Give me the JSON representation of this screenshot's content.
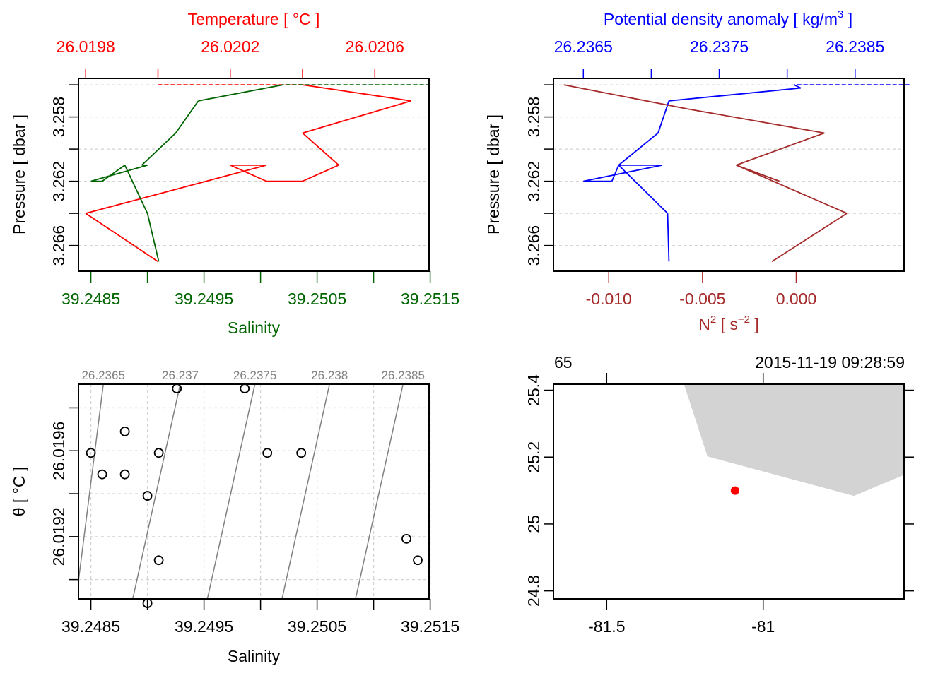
{
  "chart_data": [
    {
      "id": "profile_TS",
      "type": "line",
      "title": "",
      "ylabel": "Pressure [ dbar ]",
      "ylim": [
        3.2676,
        3.2556
      ],
      "yticks": [
        "3.258",
        "3.262",
        "3.266"
      ],
      "ytick_values": [
        3.256,
        3.258,
        3.26,
        3.262,
        3.264,
        3.266
      ],
      "top_axis": {
        "label": "Temperature [ °C ]",
        "color": "#ff0000",
        "tick_labels": [
          "26.0198",
          "26.0202",
          "26.0206"
        ],
        "tick_values": [
          26.0198,
          26.02,
          26.0202,
          26.0204,
          26.0206
        ],
        "range": [
          26.01978,
          26.02075
        ]
      },
      "bottom_axis": {
        "label": "Salinity",
        "color": "#006400",
        "tick_labels": [
          "39.2485",
          "39.2495",
          "39.2505",
          "39.2515"
        ],
        "tick_values": [
          39.2485,
          39.249,
          39.2495,
          39.25,
          39.2505,
          39.251,
          39.2515
        ],
        "range": [
          39.24839,
          39.25149
        ]
      },
      "series": [
        {
          "name": "Temperature",
          "color": "#ff0000",
          "points": [
            {
              "x": 26.02,
              "y": 3.256,
              "dashed": true
            },
            {
              "x": 26.0204,
              "y": 3.256
            },
            {
              "x": 26.0207,
              "y": 3.257
            },
            {
              "x": 26.0204,
              "y": 3.259
            },
            {
              "x": 26.0205,
              "y": 3.261
            },
            {
              "x": 26.0204,
              "y": 3.262
            },
            {
              "x": 26.0203,
              "y": 3.262
            },
            {
              "x": 26.0202,
              "y": 3.261
            },
            {
              "x": 26.0203,
              "y": 3.261
            },
            {
              "x": 26.0198,
              "y": 3.264
            },
            {
              "x": 26.02,
              "y": 3.267
            }
          ]
        },
        {
          "name": "Salinity",
          "color": "#006400",
          "points": [
            {
              "x": 39.2515,
              "y": 3.256,
              "dashed": true
            },
            {
              "x": 39.2502,
              "y": 3.256
            },
            {
              "x": 39.24945,
              "y": 3.257
            },
            {
              "x": 39.24925,
              "y": 3.259
            },
            {
              "x": 39.24895,
              "y": 3.261
            },
            {
              "x": 39.249,
              "y": 3.261
            },
            {
              "x": 39.2485,
              "y": 3.262
            },
            {
              "x": 39.2486,
              "y": 3.262
            },
            {
              "x": 39.2488,
              "y": 3.261
            },
            {
              "x": 39.249,
              "y": 3.264
            },
            {
              "x": 39.2491,
              "y": 3.267
            }
          ]
        }
      ]
    },
    {
      "id": "profile_density_N2",
      "type": "line",
      "ylabel": "Pressure [ dbar ]",
      "ylim": [
        3.2676,
        3.2556
      ],
      "yticks": [
        "3.258",
        "3.262",
        "3.266"
      ],
      "ytick_values": [
        3.256,
        3.258,
        3.26,
        3.262,
        3.264,
        3.266
      ],
      "top_axis": {
        "label": "Potential density anomaly [ kg/m³ ]",
        "label_main": "Potential density anomaly [ kg/m",
        "label_sup": "3",
        "label_end": " ]",
        "color": "#0000ff",
        "tick_labels": [
          "26.2365",
          "26.2375",
          "26.2385"
        ],
        "tick_values": [
          26.2365,
          26.237,
          26.2375,
          26.238,
          26.2385
        ],
        "range": [
          26.23628,
          26.23886
        ]
      },
      "bottom_axis": {
        "label_main": "N",
        "label_sup1": "2",
        "label_mid": " [ s",
        "label_sup2": "−2",
        "label_end": " ]",
        "label": "N² [ s⁻² ]",
        "color": "#a52a2a",
        "tick_labels": [
          "-0.010",
          "-0.005",
          "0.000"
        ],
        "tick_values": [
          -0.01,
          -0.005,
          0.0
        ],
        "range": [
          -0.01295,
          0.00575
        ]
      },
      "series": [
        {
          "name": "Potential density anomaly",
          "color": "#0000ff",
          "points": [
            {
              "x": 26.2389,
              "y": 3.256,
              "dashed": true
            },
            {
              "x": 26.23805,
              "y": 3.256
            },
            {
              "x": 26.2381,
              "y": 3.2562
            },
            {
              "x": 26.23713,
              "y": 3.257
            },
            {
              "x": 26.23705,
              "y": 3.259
            },
            {
              "x": 26.23676,
              "y": 3.261
            },
            {
              "x": 26.23708,
              "y": 3.261
            },
            {
              "x": 26.2365,
              "y": 3.262
            },
            {
              "x": 26.23671,
              "y": 3.262
            },
            {
              "x": 26.23676,
              "y": 3.261
            },
            {
              "x": 26.23712,
              "y": 3.264
            },
            {
              "x": 26.23713,
              "y": 3.267
            }
          ]
        },
        {
          "name": "N2",
          "color": "#a52a2a",
          "points": [
            {
              "x": -0.0124,
              "y": 3.256
            },
            {
              "x": -0.0058,
              "y": 3.2575
            },
            {
              "x": 0.0015,
              "y": 3.259
            },
            {
              "x": -0.0032,
              "y": 3.261
            },
            {
              "x": -0.0009,
              "y": 3.262
            },
            {
              "x": -0.0032,
              "y": 3.261
            },
            {
              "x": 0.0027,
              "y": 3.264
            },
            {
              "x": -0.0013,
              "y": 3.267
            }
          ]
        }
      ]
    },
    {
      "id": "ts_diagram",
      "type": "scatter",
      "xlabel": "Salinity",
      "ylabel": "θ [ °C ]",
      "xlim": [
        39.24839,
        39.25149
      ],
      "ylim": [
        26.01891,
        26.01991
      ],
      "xtick_labels": [
        "39.2485",
        "39.2495",
        "39.2505",
        "39.2515"
      ],
      "xtick_values": [
        39.2485,
        39.249,
        39.2495,
        39.25,
        39.2505,
        39.251,
        39.2515
      ],
      "ytick_labels": [
        "26.0192",
        "26.0196"
      ],
      "ytick_values": [
        26.019,
        26.0192,
        26.0194,
        26.0196,
        26.0198
      ],
      "isopycnals": {
        "color": "#808080",
        "labels": [
          "26.2365",
          "26.237",
          "26.2375",
          "26.238",
          "26.2385"
        ],
        "top_salinity": [
          39.24861,
          39.24929,
          39.24995,
          39.25061,
          39.25126
        ],
        "bottom_salinity": [
          39.24837,
          39.24887,
          39.24953,
          39.25019,
          39.25084
        ]
      },
      "points": [
        {
          "x": 39.24926,
          "y": 26.01989
        },
        {
          "x": 39.24986,
          "y": 26.01989
        },
        {
          "x": 39.2488,
          "y": 26.01969
        },
        {
          "x": 39.2485,
          "y": 26.01959
        },
        {
          "x": 39.2491,
          "y": 26.01959
        },
        {
          "x": 39.25006,
          "y": 26.01959
        },
        {
          "x": 39.25036,
          "y": 26.01959
        },
        {
          "x": 39.2486,
          "y": 26.01949
        },
        {
          "x": 39.2488,
          "y": 26.01949
        },
        {
          "x": 39.249,
          "y": 26.01939
        },
        {
          "x": 39.25129,
          "y": 26.01919
        },
        {
          "x": 39.25139,
          "y": 26.01909
        },
        {
          "x": 39.2491,
          "y": 26.01909
        },
        {
          "x": 39.249,
          "y": 26.01889
        }
      ]
    },
    {
      "id": "map",
      "type": "scatter",
      "xlim": [
        -81.67,
        -80.55
      ],
      "ylim": [
        24.776,
        25.418
      ],
      "xtick_labels": [
        "-81.5",
        "-81"
      ],
      "xtick_values": [
        -81.5,
        -81.0
      ],
      "ytick_labels": [
        "24.8",
        "25",
        "25.2",
        "25.4"
      ],
      "ytick_values": [
        24.8,
        25.0,
        25.2,
        25.4
      ],
      "top_left_label": "65",
      "top_right_label": "2015-11-19 09:28:59",
      "land_color": "#d3d3d3",
      "land_polygon": [
        [
          -81.253,
          25.418
        ],
        [
          -81.178,
          25.202
        ],
        [
          -80.71,
          25.084
        ],
        [
          -80.55,
          25.147
        ],
        [
          -80.55,
          25.418
        ]
      ],
      "station": {
        "lon": -81.09,
        "lat": 25.1,
        "color": "#ff0000"
      }
    }
  ]
}
